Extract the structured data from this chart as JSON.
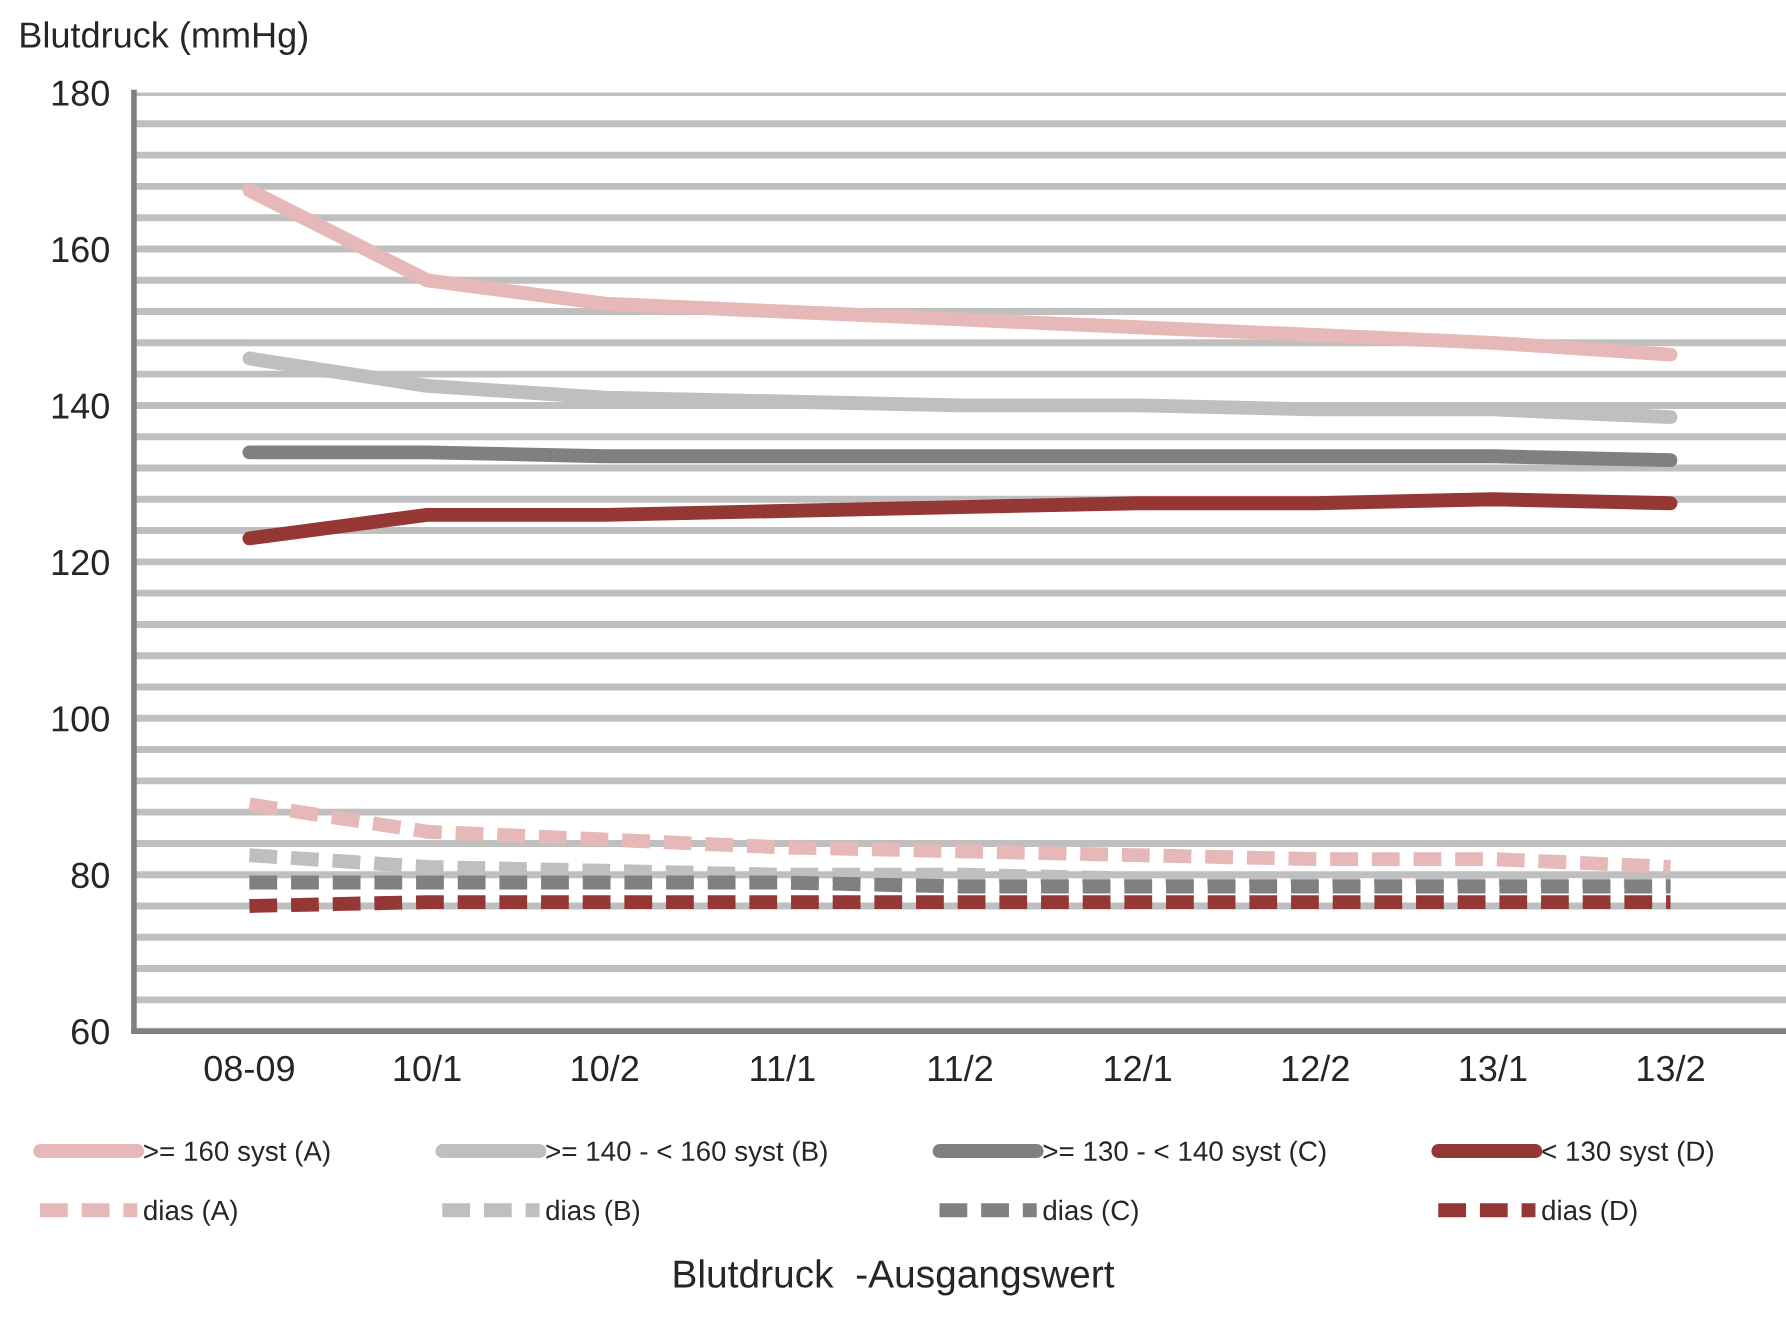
{
  "chart_data": {
    "type": "line",
    "ylabel": "Blutdruck (mmHg)",
    "xlabel": "Blutdruck  -Ausgangswert",
    "categories": [
      "08-09",
      "10/1",
      "10/2",
      "11/1",
      "11/2",
      "12/1",
      "12/2",
      "13/1",
      "13/2"
    ],
    "series": [
      {
        "name": ">= 160 syst (A)",
        "color": "#e6b8b7",
        "values": [
          167.5,
          156,
          153,
          152,
          151,
          150,
          149,
          148,
          146.5
        ]
      },
      {
        "name": ">= 140 - < 160 syst (B)",
        "color": "#bfbfbf",
        "values": [
          146,
          142.5,
          141,
          140.5,
          140,
          140,
          139.5,
          139.5,
          138.5
        ]
      },
      {
        "name": ">= 130 - < 140 syst (C)",
        "color": "#808080",
        "values": [
          134,
          134,
          133.5,
          133.5,
          133.5,
          133.5,
          133.5,
          133.5,
          133
        ]
      },
      {
        "name": "< 130 syst (D)",
        "color": "#953735",
        "values": [
          123,
          126,
          126,
          126.5,
          127,
          127.5,
          127.5,
          128,
          127.5
        ]
      },
      {
        "name": "dias (A)",
        "color": "#e6b8b7",
        "line_style": "dashed",
        "values": [
          89,
          85.5,
          84.5,
          83.5,
          83,
          82.5,
          82,
          82,
          81
        ]
      },
      {
        "name": "dias (B)",
        "color": "#bfbfbf",
        "line_style": "dashed",
        "values": [
          82.5,
          81,
          80.5,
          80,
          80,
          79.5,
          79.5,
          79.5,
          79
        ]
      },
      {
        "name": "dias (C)",
        "color": "#808080",
        "line_style": "dashed",
        "values": [
          79,
          79,
          79,
          79,
          78.5,
          78.5,
          78.5,
          78.5,
          78.5
        ]
      },
      {
        "name": "dias (D)",
        "color": "#953735",
        "line_style": "dashed",
        "values": [
          76,
          76.5,
          76.5,
          76.5,
          76.5,
          76.5,
          76.5,
          76.5,
          76.5
        ]
      }
    ],
    "ylim": [
      60,
      180
    ],
    "yticks": [
      60,
      {
        "value": 64,
        "label": null
      },
      {
        "value": 68,
        "label": null
      },
      {
        "value": 72,
        "label": null
      },
      {
        "value": 76,
        "label": null
      },
      80,
      {
        "value": 84,
        "label": null
      },
      {
        "value": 88,
        "label": null
      },
      {
        "value": 92,
        "label": null
      },
      {
        "value": 96,
        "label": null
      },
      100,
      {
        "value": 104,
        "label": null
      },
      {
        "value": 108,
        "label": null
      },
      {
        "value": 112,
        "label": null
      },
      {
        "value": 116,
        "label": null
      },
      120,
      {
        "value": 124,
        "label": null
      },
      {
        "value": 128,
        "label": null
      },
      {
        "value": 132,
        "label": null
      },
      {
        "value": 136,
        "label": null
      },
      140,
      {
        "value": 144,
        "label": null
      },
      {
        "value": 148,
        "label": null
      },
      {
        "value": 152,
        "label": null
      },
      {
        "value": 156,
        "label": null
      },
      160,
      {
        "value": 164,
        "label": null
      },
      {
        "value": 168,
        "label": null
      },
      {
        "value": 172,
        "label": null
      },
      {
        "value": 176,
        "label": null
      },
      180
    ],
    "grid": "y",
    "legend": "bottom",
    "marker": "none",
    "line_style": "solid"
  }
}
